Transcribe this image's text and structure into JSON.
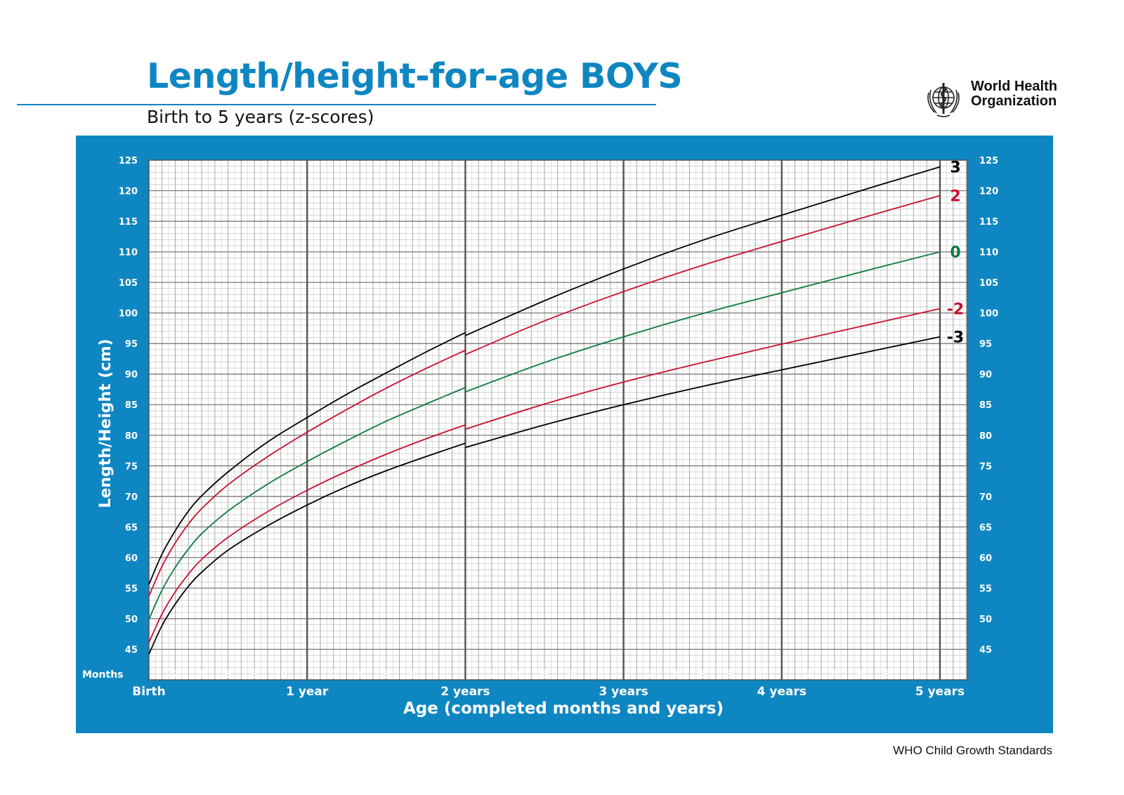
{
  "page": {
    "title": "Length/height-for-age BOYS",
    "subtitle": "Birth to 5 years (z-scores)",
    "organization_line1": "World Health",
    "organization_line2": "Organization",
    "footer": "WHO Child Growth Standards",
    "logo_icon": "who-emblem-icon"
  },
  "colors": {
    "brand_blue": "#0e86c2",
    "grid_bg": "#ffffff",
    "sd3": "#000000",
    "sd2": "#c8102e",
    "median": "#0a7a3c"
  },
  "chart_data": {
    "type": "line",
    "ylabel": "Length/Height (cm)",
    "xlabel": "Age (completed months and years)",
    "x_unit": "months",
    "xlim": [
      0,
      60
    ],
    "ylim": [
      40,
      125
    ],
    "y_ticks": [
      45,
      50,
      55,
      60,
      65,
      70,
      75,
      80,
      85,
      90,
      95,
      100,
      105,
      110,
      115,
      120,
      125
    ],
    "months_label": "Months",
    "month_ticks": [
      2,
      4,
      6,
      8,
      10,
      14,
      16,
      18,
      20,
      22,
      26,
      28,
      30,
      32,
      34,
      38,
      40,
      42,
      44,
      46,
      50,
      52,
      54,
      56,
      58
    ],
    "month_tick_labels": [
      "2",
      "4",
      "6",
      "8",
      "10",
      "2",
      "4",
      "6",
      "8",
      "10",
      "2",
      "4",
      "6",
      "8",
      "10",
      "2",
      "4",
      "6",
      "8",
      "10",
      "2",
      "4",
      "6",
      "8",
      "10"
    ],
    "year_ticks": [
      0,
      12,
      24,
      36,
      48,
      60
    ],
    "year_labels": [
      "Birth",
      "1 year",
      "2 years",
      "3 years",
      "4 years",
      "5 years"
    ],
    "grid": true,
    "series": [
      {
        "name": "3",
        "color": "#000000",
        "x": [
          0,
          1,
          2,
          3,
          4,
          6,
          9,
          12,
          15,
          18,
          21,
          24,
          24,
          30,
          36,
          42,
          48,
          54,
          60
        ],
        "y": [
          55.6,
          60.6,
          64.4,
          67.6,
          70.1,
          74.0,
          78.9,
          82.9,
          86.7,
          90.2,
          93.6,
          96.8,
          96.3,
          102.0,
          107.2,
          111.9,
          116.0,
          120.0,
          123.9
        ]
      },
      {
        "name": "2",
        "color": "#c8102e",
        "x": [
          0,
          1,
          2,
          3,
          4,
          6,
          9,
          12,
          15,
          18,
          21,
          24,
          24,
          30,
          36,
          42,
          48,
          54,
          60
        ],
        "y": [
          53.7,
          58.6,
          62.4,
          65.5,
          68.0,
          71.9,
          76.5,
          80.5,
          84.2,
          87.7,
          90.9,
          93.9,
          93.2,
          98.7,
          103.5,
          107.8,
          111.7,
          115.5,
          119.2
        ]
      },
      {
        "name": "0",
        "color": "#0a7a3c",
        "x": [
          0,
          1,
          2,
          3,
          4,
          6,
          9,
          12,
          15,
          18,
          21,
          24,
          24,
          30,
          36,
          42,
          48,
          54,
          60
        ],
        "y": [
          49.9,
          54.7,
          58.4,
          61.4,
          63.9,
          67.6,
          72.0,
          75.7,
          79.1,
          82.3,
          85.1,
          87.8,
          87.1,
          91.9,
          96.1,
          99.9,
          103.3,
          106.7,
          110.0
        ]
      },
      {
        "name": "-2",
        "color": "#c8102e",
        "x": [
          0,
          1,
          2,
          3,
          4,
          6,
          9,
          12,
          15,
          18,
          21,
          24,
          24,
          30,
          36,
          42,
          48,
          54,
          60
        ],
        "y": [
          46.1,
          50.8,
          54.4,
          57.3,
          59.7,
          63.3,
          67.5,
          71.0,
          74.1,
          76.9,
          79.4,
          81.7,
          81.0,
          85.1,
          88.7,
          91.9,
          94.9,
          97.8,
          100.7
        ]
      },
      {
        "name": "-3",
        "color": "#000000",
        "x": [
          0,
          1,
          2,
          3,
          4,
          6,
          9,
          12,
          15,
          18,
          21,
          24,
          24,
          30,
          36,
          42,
          48,
          54,
          60
        ],
        "y": [
          44.2,
          48.9,
          52.4,
          55.3,
          57.6,
          61.2,
          65.2,
          68.6,
          71.6,
          74.2,
          76.5,
          78.7,
          78.0,
          81.7,
          85.0,
          88.0,
          90.7,
          93.4,
          96.1
        ]
      }
    ]
  }
}
